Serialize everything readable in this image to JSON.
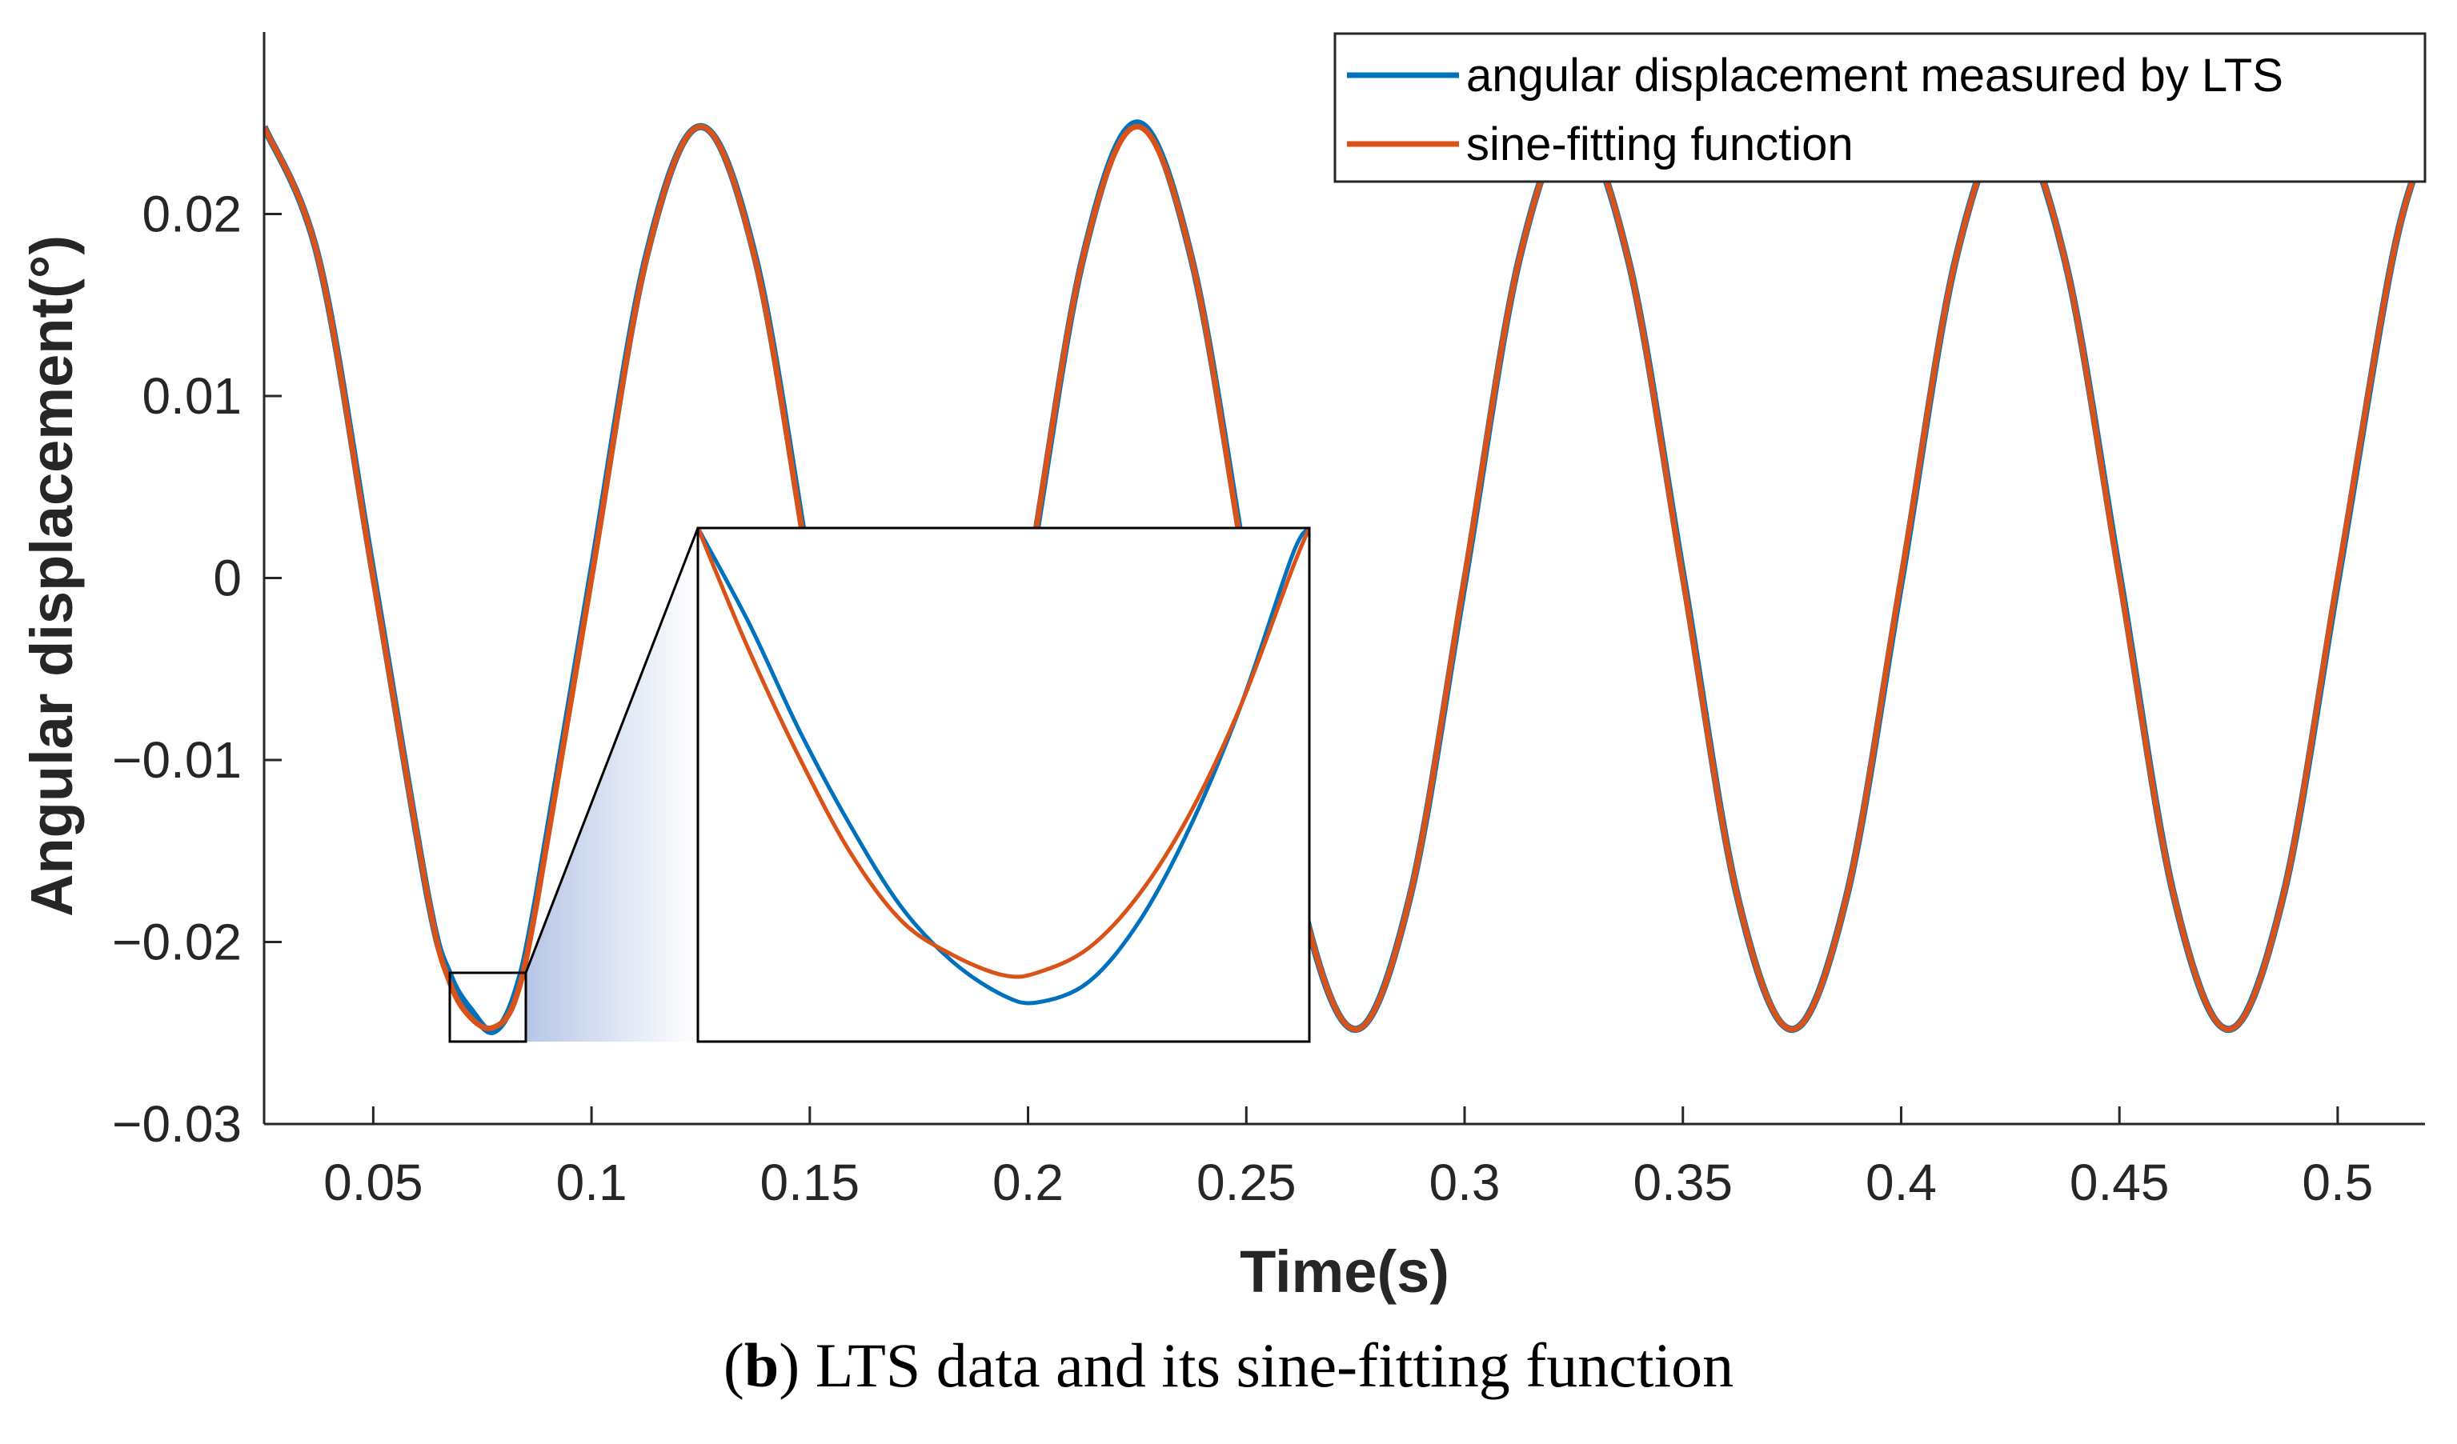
{
  "caption": {
    "letter": "b",
    "text": "LTS data and its sine-fitting function"
  },
  "chart_data": {
    "type": "line",
    "xlabel": "Time(s)",
    "ylabel": "Angular displacement(°)",
    "xlim": [
      0.025,
      0.52
    ],
    "ylim": [
      -0.03,
      0.03
    ],
    "xticks": [
      0.05,
      0.1,
      0.15,
      0.2,
      0.25,
      0.3,
      0.35,
      0.4,
      0.45,
      0.5
    ],
    "xtick_labels": [
      "0.05",
      "0.1",
      "0.15",
      "0.2",
      "0.25",
      "0.3",
      "0.35",
      "0.4",
      "0.45",
      "0.5"
    ],
    "yticks": [
      -0.03,
      -0.02,
      -0.01,
      0,
      0.01,
      0.02
    ],
    "ytick_labels": [
      "−0.03",
      "−0.02",
      "−0.01",
      "0",
      "0.01",
      "0.02"
    ],
    "grid": false,
    "legend_position": "top-right",
    "series": [
      {
        "name": "angular displacement measured by LTS",
        "color": "#0072BD",
        "x": [
          0.025,
          0.0375,
          0.05,
          0.0625,
          0.0675,
          0.0725,
          0.0775,
          0.0825,
          0.0875,
          0.1,
          0.1125,
          0.125,
          0.1375,
          0.15,
          0.1625,
          0.175,
          0.1875,
          0.2,
          0.2125,
          0.225,
          0.2375,
          0.25,
          0.2625,
          0.275,
          0.2875,
          0.3,
          0.3125,
          0.325,
          0.3375,
          0.35,
          0.3625,
          0.375,
          0.3875,
          0.4,
          0.4125,
          0.425,
          0.4375,
          0.45,
          0.4625,
          0.475,
          0.4875,
          0.5,
          0.5125,
          0.52
        ],
        "y": [
          0.0248,
          0.0175,
          0.0002,
          -0.0175,
          -0.0218,
          -0.0238,
          -0.0249,
          -0.0229,
          -0.0175,
          0.0003,
          0.0176,
          0.0248,
          0.0176,
          0.0003,
          -0.0174,
          -0.0248,
          -0.0175,
          -0.0002,
          0.0175,
          0.025,
          0.0175,
          0.0003,
          -0.0175,
          -0.0248,
          -0.0175,
          -0.0002,
          0.0175,
          0.0248,
          0.0175,
          0.0002,
          -0.0175,
          -0.0248,
          -0.0175,
          -0.0002,
          0.0175,
          0.0248,
          0.0175,
          0.0002,
          -0.0175,
          -0.0248,
          -0.0175,
          -0.0002,
          0.0175,
          0.0238
        ]
      },
      {
        "name": "sine-fitting function",
        "color": "#D95319",
        "x": [
          0.025,
          0.0375,
          0.05,
          0.0625,
          0.0675,
          0.0725,
          0.0775,
          0.0825,
          0.0875,
          0.1,
          0.1125,
          0.125,
          0.1375,
          0.15,
          0.1625,
          0.175,
          0.1875,
          0.2,
          0.2125,
          0.225,
          0.2375,
          0.25,
          0.2625,
          0.275,
          0.2875,
          0.3,
          0.3125,
          0.325,
          0.3375,
          0.35,
          0.3625,
          0.375,
          0.3875,
          0.4,
          0.4125,
          0.425,
          0.4375,
          0.45,
          0.4625,
          0.475,
          0.4875,
          0.5,
          0.5125,
          0.52
        ],
        "y": [
          0.0248,
          0.0175,
          0.0,
          -0.0175,
          -0.0222,
          -0.0242,
          -0.0247,
          -0.0232,
          -0.0178,
          0.0,
          0.0175,
          0.0248,
          0.0175,
          0.0,
          -0.0175,
          -0.0248,
          -0.0175,
          0.0,
          0.0175,
          0.0248,
          0.0175,
          0.0,
          -0.0175,
          -0.0248,
          -0.0175,
          0.0,
          0.0175,
          0.0248,
          0.0175,
          0.0,
          -0.0175,
          -0.0248,
          -0.0175,
          0.0,
          0.0175,
          0.0248,
          0.0175,
          0.0,
          -0.0175,
          -0.0248,
          -0.0175,
          0.0,
          0.0175,
          0.0238
        ]
      }
    ],
    "inset": {
      "source_xlim": [
        0.0675,
        0.0855
      ],
      "source_ylim": [
        -0.0253,
        -0.0217
      ],
      "series": [
        {
          "name": "angular displacement measured by LTS",
          "x": [
            0.0675,
            0.069,
            0.0705,
            0.072,
            0.0735,
            0.075,
            0.0765,
            0.0775,
            0.079,
            0.0805,
            0.082,
            0.0835,
            0.085,
            0.0855
          ],
          "y": [
            -0.0217,
            -0.0224,
            -0.0232,
            -0.0239,
            -0.0245,
            -0.0249,
            -0.02515,
            -0.0252,
            -0.02505,
            -0.0246,
            -0.0239,
            -0.023,
            -0.0219,
            -0.0217
          ]
        },
        {
          "name": "sine-fitting function",
          "x": [
            0.0675,
            0.069,
            0.0705,
            0.072,
            0.0735,
            0.075,
            0.0765,
            0.0775,
            0.079,
            0.0805,
            0.082,
            0.0835,
            0.085,
            0.0855
          ],
          "y": [
            -0.0217,
            -0.0226,
            -0.0234,
            -0.0241,
            -0.0246,
            -0.02485,
            -0.025,
            -0.02498,
            -0.0248,
            -0.0244,
            -0.0238,
            -0.023,
            -0.022,
            -0.0217
          ]
        }
      ]
    }
  }
}
